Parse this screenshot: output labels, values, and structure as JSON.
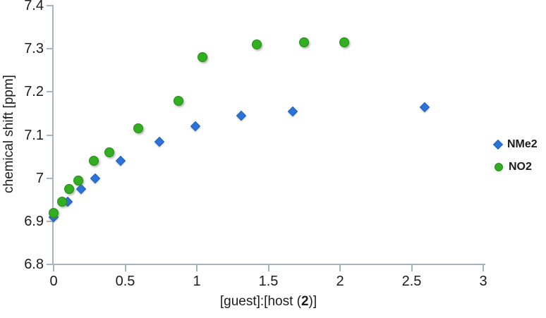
{
  "chart_data": {
    "type": "scatter",
    "title": "",
    "xlabel": "[guest]:[host (2)]",
    "xlabel_parts": {
      "prefix": "[guest]:[host (",
      "bold": "2",
      "suffix": ")]"
    },
    "ylabel": "chemical shift [ppm]",
    "xlim": [
      0,
      3
    ],
    "ylim": [
      6.8,
      7.4
    ],
    "xticks": [
      0,
      0.5,
      1,
      1.5,
      2,
      2.5,
      3
    ],
    "xtick_labels": [
      "0",
      "0.5",
      "1",
      "1.5",
      "2",
      "2.5",
      "3"
    ],
    "yticks": [
      6.8,
      6.9,
      7,
      7.1,
      7.2,
      7.3,
      7.4
    ],
    "ytick_labels": [
      "6.8",
      "6.9",
      "7",
      "7.1",
      "7.2",
      "7.3",
      "7.4"
    ],
    "grid": false,
    "legend_position": "right",
    "series": [
      {
        "name": "NMe2",
        "marker": "diamond",
        "color": "#2d73d7",
        "edge_color": "#1c5fc0",
        "points": [
          [
            0,
            6.91
          ],
          [
            0.1,
            6.945
          ],
          [
            0.19,
            6.975
          ],
          [
            0.29,
            7.0
          ],
          [
            0.47,
            7.04
          ],
          [
            0.74,
            7.085
          ],
          [
            0.99,
            7.12
          ],
          [
            1.31,
            7.145
          ],
          [
            1.67,
            7.155
          ],
          [
            2.59,
            7.165
          ]
        ]
      },
      {
        "name": "NO2",
        "marker": "circle",
        "color": "#33ad21",
        "edge_color": "#1e9312",
        "points": [
          [
            0,
            6.92
          ],
          [
            0.06,
            6.945
          ],
          [
            0.11,
            6.975
          ],
          [
            0.17,
            6.995
          ],
          [
            0.28,
            7.04
          ],
          [
            0.39,
            7.06
          ],
          [
            0.59,
            7.115
          ],
          [
            0.87,
            7.18
          ],
          [
            1.04,
            7.28
          ],
          [
            1.42,
            7.31
          ],
          [
            1.75,
            7.315
          ],
          [
            2.03,
            7.315
          ]
        ]
      }
    ],
    "colors": {
      "axis": "#a8b6bc",
      "text": "#1c1c1c"
    }
  }
}
